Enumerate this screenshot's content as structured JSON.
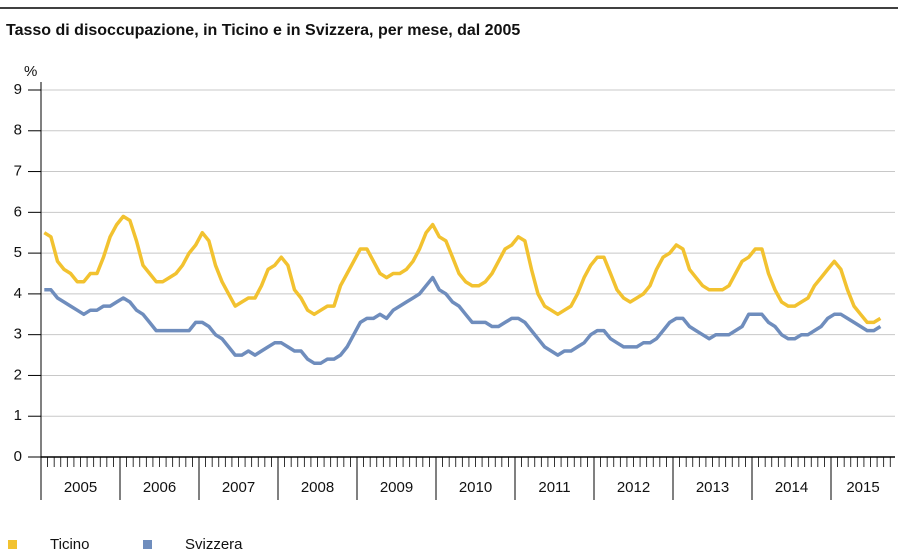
{
  "chart_data": {
    "type": "line",
    "title": "Tasso di disoccupazione, in Ticino e in Svizzera, per mese, dal 2005",
    "y_label": "%",
    "categories": [
      "2005",
      "2006",
      "2007",
      "2008",
      "2009",
      "2010",
      "2011",
      "2012",
      "2013",
      "2014",
      "2015"
    ],
    "ylim": [
      0,
      9
    ],
    "yticks": [
      0,
      1,
      2,
      3,
      4,
      5,
      6,
      7,
      8,
      9
    ],
    "grid": true,
    "legend": "bottom-left",
    "series": [
      {
        "name": "Ticino",
        "color": "#f2c230",
        "values": [
          [
            5.5,
            5.4,
            4.8,
            4.6,
            4.5,
            4.3,
            4.3,
            4.5,
            4.5,
            4.9,
            5.4,
            5.7
          ],
          [
            5.9,
            5.8,
            5.3,
            4.7,
            4.5,
            4.3,
            4.3,
            4.4,
            4.5,
            4.7,
            5.0,
            5.2
          ],
          [
            5.5,
            5.3,
            4.7,
            4.3,
            4.0,
            3.7,
            3.8,
            3.9,
            3.9,
            4.2,
            4.6,
            4.7
          ],
          [
            4.9,
            4.7,
            4.1,
            3.9,
            3.6,
            3.5,
            3.6,
            3.7,
            3.7,
            4.2,
            4.5,
            4.8
          ],
          [
            5.1,
            5.1,
            4.8,
            4.5,
            4.4,
            4.5,
            4.5,
            4.6,
            4.8,
            5.1,
            5.5,
            5.7
          ],
          [
            5.4,
            5.3,
            4.9,
            4.5,
            4.3,
            4.2,
            4.2,
            4.3,
            4.5,
            4.8,
            5.1,
            5.2
          ],
          [
            5.4,
            5.3,
            4.6,
            4.0,
            3.7,
            3.6,
            3.5,
            3.6,
            3.7,
            4.0,
            4.4,
            4.7
          ],
          [
            4.9,
            4.9,
            4.5,
            4.1,
            3.9,
            3.8,
            3.9,
            4.0,
            4.2,
            4.6,
            4.9,
            5.0
          ],
          [
            5.2,
            5.1,
            4.6,
            4.4,
            4.2,
            4.1,
            4.1,
            4.1,
            4.2,
            4.5,
            4.8,
            4.9
          ],
          [
            5.1,
            5.1,
            4.5,
            4.1,
            3.8,
            3.7,
            3.7,
            3.8,
            3.9,
            4.2,
            4.4,
            4.6
          ],
          [
            4.8,
            4.6,
            4.1,
            3.7,
            3.5,
            3.3,
            3.3,
            3.4
          ]
        ]
      },
      {
        "name": "Svizzera",
        "color": "#6f8dbd",
        "values": [
          [
            4.1,
            4.1,
            3.9,
            3.8,
            3.7,
            3.6,
            3.5,
            3.6,
            3.6,
            3.7,
            3.7,
            3.8
          ],
          [
            3.9,
            3.8,
            3.6,
            3.5,
            3.3,
            3.1,
            3.1,
            3.1,
            3.1,
            3.1,
            3.1,
            3.3
          ],
          [
            3.3,
            3.2,
            3.0,
            2.9,
            2.7,
            2.5,
            2.5,
            2.6,
            2.5,
            2.6,
            2.7,
            2.8
          ],
          [
            2.8,
            2.7,
            2.6,
            2.6,
            2.4,
            2.3,
            2.3,
            2.4,
            2.4,
            2.5,
            2.7,
            3.0
          ],
          [
            3.3,
            3.4,
            3.4,
            3.5,
            3.4,
            3.6,
            3.7,
            3.8,
            3.9,
            4.0,
            4.2,
            4.4
          ],
          [
            4.1,
            4.0,
            3.8,
            3.7,
            3.5,
            3.3,
            3.3,
            3.3,
            3.2,
            3.2,
            3.3,
            3.4
          ],
          [
            3.4,
            3.3,
            3.1,
            2.9,
            2.7,
            2.6,
            2.5,
            2.6,
            2.6,
            2.7,
            2.8,
            3.0
          ],
          [
            3.1,
            3.1,
            2.9,
            2.8,
            2.7,
            2.7,
            2.7,
            2.8,
            2.8,
            2.9,
            3.1,
            3.3
          ],
          [
            3.4,
            3.4,
            3.2,
            3.1,
            3.0,
            2.9,
            3.0,
            3.0,
            3.0,
            3.1,
            3.2,
            3.5
          ],
          [
            3.5,
            3.5,
            3.3,
            3.2,
            3.0,
            2.9,
            2.9,
            3.0,
            3.0,
            3.1,
            3.2,
            3.4
          ],
          [
            3.5,
            3.5,
            3.4,
            3.3,
            3.2,
            3.1,
            3.1,
            3.2
          ]
        ]
      }
    ]
  }
}
